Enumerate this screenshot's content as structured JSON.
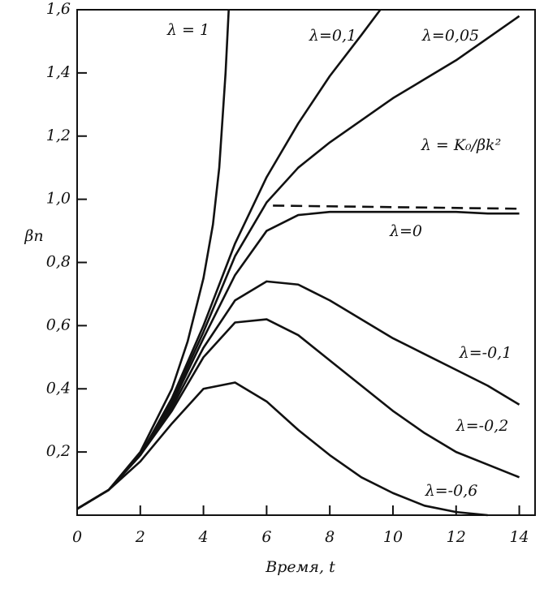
{
  "chart_data": {
    "type": "line",
    "x_label": "Время, t",
    "y_label": "βn",
    "xlim": [
      0,
      14.5
    ],
    "ylim": [
      0,
      1.6
    ],
    "xticks": [
      0,
      2,
      4,
      6,
      8,
      10,
      12,
      14
    ],
    "yticks": [
      {
        "value": 0.2,
        "label": "0,2"
      },
      {
        "value": 0.4,
        "label": "0,4"
      },
      {
        "value": 0.6,
        "label": "0,6"
      },
      {
        "value": 0.8,
        "label": "0,8"
      },
      {
        "value": 1.0,
        "label": "1,0"
      },
      {
        "value": 1.2,
        "label": "1,2"
      },
      {
        "value": 1.4,
        "label": "1,4"
      },
      {
        "value": 1.6,
        "label": "1,6"
      }
    ],
    "grid": false,
    "series": [
      {
        "name": "λ = 1",
        "color": "#111111",
        "x": [
          0,
          1,
          2,
          3,
          3.5,
          4,
          4.3,
          4.5,
          4.7,
          4.8
        ],
        "values": [
          0.02,
          0.08,
          0.2,
          0.4,
          0.55,
          0.75,
          0.92,
          1.1,
          1.4,
          1.6
        ]
      },
      {
        "name": "λ=0,1",
        "color": "#111111",
        "x": [
          0,
          1,
          2,
          3,
          4,
          5,
          6,
          7,
          8,
          9,
          9.6
        ],
        "values": [
          0.02,
          0.08,
          0.19,
          0.37,
          0.6,
          0.86,
          1.07,
          1.24,
          1.39,
          1.52,
          1.6
        ]
      },
      {
        "name": "λ=0,05",
        "color": "#111111",
        "x": [
          0,
          1,
          2,
          3,
          4,
          5,
          6,
          7,
          8,
          9,
          10,
          11,
          12,
          13,
          14
        ],
        "values": [
          0.02,
          0.08,
          0.19,
          0.36,
          0.58,
          0.82,
          0.99,
          1.1,
          1.18,
          1.25,
          1.32,
          1.38,
          1.44,
          1.51,
          1.58
        ]
      },
      {
        "name": "λ = K₀/βk²",
        "color": "#111111",
        "dashed": true,
        "x": [
          6.2,
          14
        ],
        "values": [
          0.98,
          0.97
        ]
      },
      {
        "name": "λ=0",
        "color": "#111111",
        "x": [
          0,
          1,
          2,
          3,
          4,
          5,
          6,
          7,
          8,
          9,
          10,
          11,
          12,
          13,
          14
        ],
        "values": [
          0.02,
          0.08,
          0.19,
          0.35,
          0.56,
          0.76,
          0.9,
          0.95,
          0.96,
          0.96,
          0.96,
          0.96,
          0.96,
          0.955,
          0.955
        ]
      },
      {
        "name": "λ=-0,1",
        "color": "#111111",
        "x": [
          0,
          1,
          2,
          3,
          4,
          5,
          6,
          7,
          8,
          9,
          10,
          11,
          12,
          13,
          14
        ],
        "values": [
          0.02,
          0.08,
          0.19,
          0.34,
          0.53,
          0.68,
          0.74,
          0.73,
          0.68,
          0.62,
          0.56,
          0.51,
          0.46,
          0.41,
          0.35
        ]
      },
      {
        "name": "λ=-0,2",
        "color": "#111111",
        "x": [
          0,
          1,
          2,
          3,
          4,
          5,
          6,
          7,
          8,
          9,
          10,
          11,
          12,
          13,
          14
        ],
        "values": [
          0.02,
          0.08,
          0.19,
          0.33,
          0.5,
          0.61,
          0.62,
          0.57,
          0.49,
          0.41,
          0.33,
          0.26,
          0.2,
          0.16,
          0.12
        ]
      },
      {
        "name": "λ=-0,6",
        "color": "#111111",
        "x": [
          0,
          1,
          2,
          3,
          4,
          5,
          6,
          7,
          8,
          9,
          10,
          11,
          12,
          13
        ],
        "values": [
          0.02,
          0.08,
          0.17,
          0.29,
          0.4,
          0.42,
          0.36,
          0.27,
          0.19,
          0.12,
          0.07,
          0.03,
          0.01,
          0
        ]
      }
    ]
  }
}
